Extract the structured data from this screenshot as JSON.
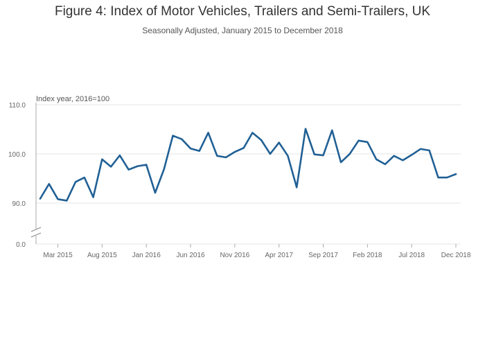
{
  "chart_data": {
    "type": "line",
    "title": "Figure 4: Index of Motor Vehicles, Trailers and Semi-Trailers, UK",
    "subtitle": "Seasonally Adjusted, January 2015 to December 2018",
    "ylabel": "Index year, 2016=100",
    "xlabel": "",
    "y_ticks": [
      {
        "value": 110,
        "label": "110.0"
      },
      {
        "value": 100,
        "label": "100.0"
      },
      {
        "value": 90,
        "label": "90.0"
      }
    ],
    "y_zero_label": "0.0",
    "ylim": [
      88,
      111
    ],
    "y_axis_break": true,
    "x_ticks": [
      {
        "index": 2,
        "label": "Mar 2015"
      },
      {
        "index": 7,
        "label": "Aug 2015"
      },
      {
        "index": 12,
        "label": "Jan 2016"
      },
      {
        "index": 17,
        "label": "Jun 2016"
      },
      {
        "index": 22,
        "label": "Nov 2016"
      },
      {
        "index": 27,
        "label": "Apr 2017"
      },
      {
        "index": 32,
        "label": "Sep 2017"
      },
      {
        "index": 37,
        "label": "Feb 2018"
      },
      {
        "index": 42,
        "label": "Jul 2018"
      },
      {
        "index": 47,
        "label": "Dec 2018"
      }
    ],
    "series": [
      {
        "name": "Index",
        "color": "#206095",
        "values": [
          90.9,
          93.9,
          90.8,
          90.5,
          94.3,
          95.2,
          91.2,
          98.9,
          97.4,
          99.7,
          96.8,
          97.5,
          97.8,
          92.1,
          96.9,
          103.7,
          103.0,
          101.1,
          100.6,
          104.3,
          99.6,
          99.3,
          100.4,
          101.2,
          104.3,
          102.8,
          100.0,
          102.3,
          99.6,
          93.2,
          105.1,
          99.9,
          99.7,
          104.8,
          98.3,
          100.0,
          102.7,
          102.4,
          98.9,
          97.9,
          99.6,
          98.7,
          99.8,
          101.0,
          100.7,
          95.2,
          95.2,
          95.9
        ]
      }
    ]
  }
}
